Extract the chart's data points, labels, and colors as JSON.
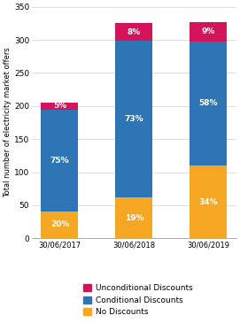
{
  "categories": [
    "30/06/2017",
    "30/06/2018",
    "30/06/2019"
  ],
  "no_discounts": [
    41,
    62,
    110
  ],
  "conditional": [
    154,
    237,
    188
  ],
  "unconditional": [
    10,
    26,
    29
  ],
  "no_discounts_pct": [
    "20%",
    "19%",
    "34%"
  ],
  "conditional_pct": [
    "75%",
    "73%",
    "58%"
  ],
  "unconditional_pct": [
    "5%",
    "8%",
    "9%"
  ],
  "color_no_discounts": "#F5A623",
  "color_conditional": "#2E75B6",
  "color_unconditional": "#D4145A",
  "ylabel": "Total number of electricity market offers",
  "ylim": [
    0,
    350
  ],
  "yticks": [
    0,
    50,
    100,
    150,
    200,
    250,
    300,
    350
  ],
  "legend_labels": [
    "Unconditional Discounts",
    "Conditional Discounts",
    "No Discounts"
  ],
  "bar_width": 0.5
}
